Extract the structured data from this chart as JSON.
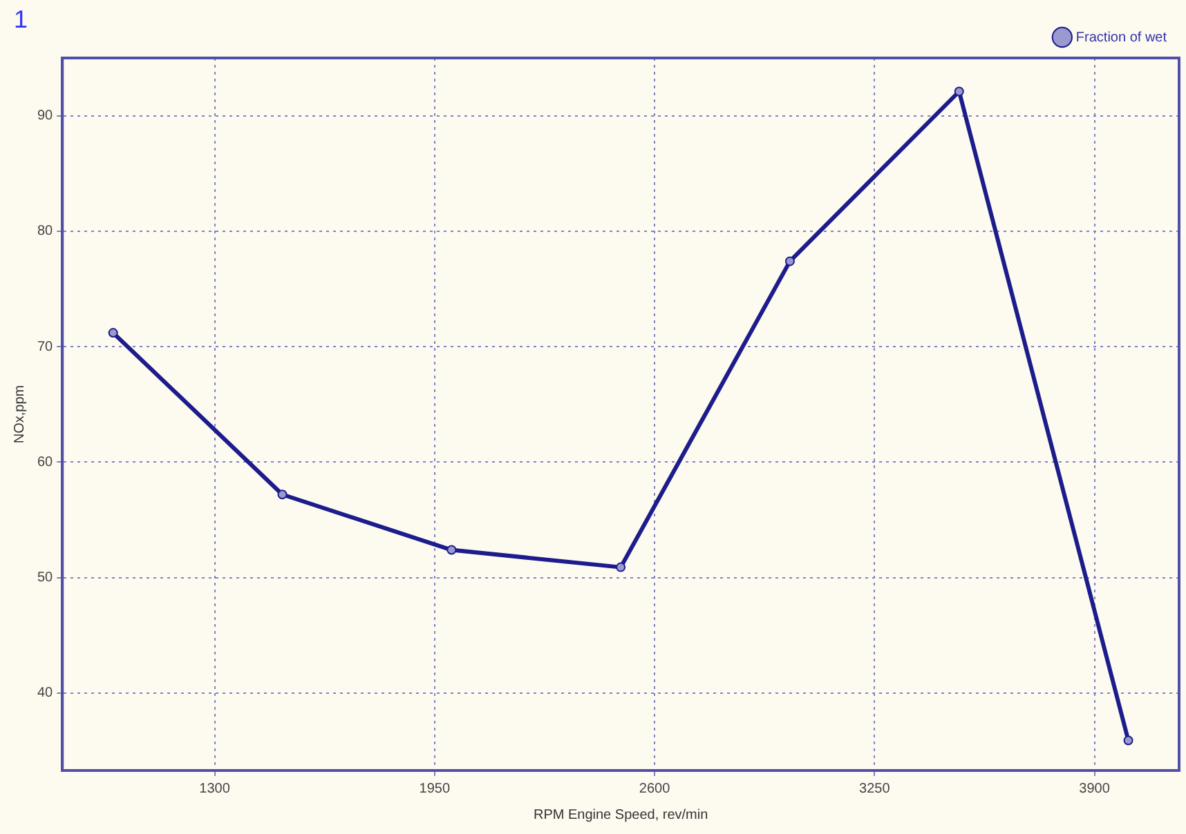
{
  "chart_data": {
    "type": "line",
    "xlabel": "RPM Engine Speed, rev/min",
    "ylabel": "NOx,ppm",
    "annotations": [
      "1"
    ],
    "x": [
      1000,
      1500,
      2000,
      2500,
      3000,
      3500,
      4000
    ],
    "series": [
      {
        "name": "Fraction of wet",
        "color": "#1c1c8c",
        "values": [
          71.2,
          57.2,
          52.4,
          50.9,
          77.4,
          92.1,
          35.9
        ]
      }
    ],
    "xlim": [
      850,
      4150
    ],
    "xticks": [
      1300,
      1950,
      2600,
      3250,
      3900
    ],
    "ylim": [
      33.3,
      95
    ],
    "yticks": [
      40,
      50,
      60,
      70,
      80,
      90
    ],
    "grid": true,
    "legend": "top right",
    "marker": "circle",
    "line_style": "solid"
  }
}
